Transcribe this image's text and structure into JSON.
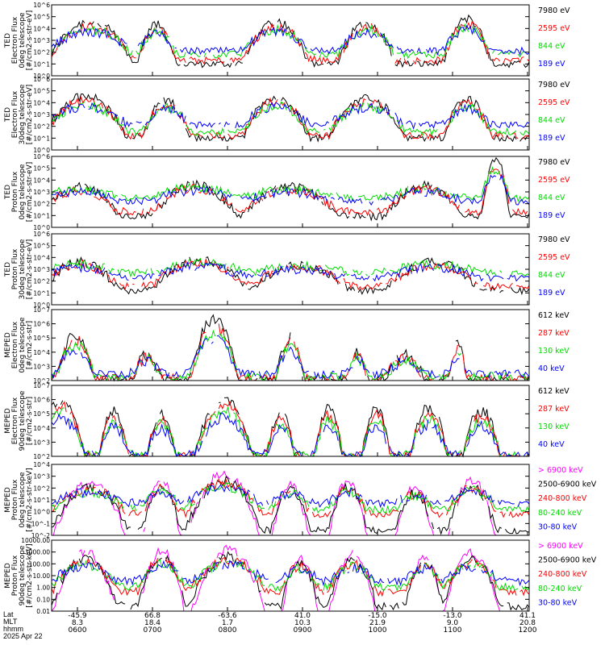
{
  "chart_data": [
    {
      "type": "line",
      "ylabel": [
        "TED",
        "Electron Flux",
        "0deg telescope",
        "[#/cm2-s-str-eV]"
      ],
      "yscale": "log",
      "ylim": [
        1,
        1000000
      ],
      "yticks": [
        "10^0",
        "10^1",
        "10^2",
        "10^3",
        "10^4",
        "10^5",
        "10^6"
      ],
      "series": [
        {
          "name": "7980 eV",
          "color": "#000000",
          "base": 1.0
        },
        {
          "name": "2595 eV",
          "color": "#ff0000",
          "base": 1.3
        },
        {
          "name": "844 eV",
          "color": "#00dd00",
          "base": 1.8
        },
        {
          "name": "189 eV",
          "color": "#0000ff",
          "base": 2.1
        }
      ],
      "bursts": [
        [
          0.08,
          0.09,
          4.6
        ],
        [
          0.22,
          0.04,
          4.3
        ],
        [
          0.47,
          0.07,
          4.6
        ],
        [
          0.66,
          0.06,
          4.5
        ],
        [
          0.87,
          0.05,
          4.8
        ]
      ]
    },
    {
      "type": "line",
      "ylabel": [
        "TED",
        "Electron Flux",
        "30deg telescope",
        "[#/cm2-s-str-eV]"
      ],
      "yscale": "log",
      "ylim": [
        1,
        1000000
      ],
      "yticks": [
        "10^0",
        "10^1",
        "10^2",
        "10^3",
        "10^4",
        "10^5",
        "10^6"
      ],
      "series": [
        {
          "name": "7980 eV",
          "color": "#000000",
          "base": 1.0
        },
        {
          "name": "2595 eV",
          "color": "#ff0000",
          "base": 1.2
        },
        {
          "name": "844 eV",
          "color": "#00dd00",
          "base": 1.5
        },
        {
          "name": "189 eV",
          "color": "#0000ff",
          "base": 2.1
        }
      ],
      "bursts": [
        [
          0.07,
          0.09,
          4.5
        ],
        [
          0.24,
          0.05,
          4.2
        ],
        [
          0.47,
          0.07,
          4.5
        ],
        [
          0.66,
          0.08,
          4.4
        ],
        [
          0.87,
          0.05,
          4.3
        ]
      ]
    },
    {
      "type": "line",
      "ylabel": [
        "TED",
        "Proton Flux",
        "0deg telescope",
        "[#/cm2-s-str-eV]"
      ],
      "yscale": "log",
      "ylim": [
        1,
        1000000
      ],
      "yticks": [
        "10^0",
        "10^1",
        "10^2",
        "10^3",
        "10^4",
        "10^5",
        "10^6"
      ],
      "series": [
        {
          "name": "7980 eV",
          "color": "#000000",
          "base": 0.9
        },
        {
          "name": "2595 eV",
          "color": "#ff0000",
          "base": 1.3
        },
        {
          "name": "844 eV",
          "color": "#00dd00",
          "base": 2.5
        },
        {
          "name": "189 eV",
          "color": "#0000ff",
          "base": 2.2
        }
      ],
      "bursts": [
        [
          0.06,
          0.08,
          3.4
        ],
        [
          0.3,
          0.09,
          3.6
        ],
        [
          0.5,
          0.1,
          3.4
        ],
        [
          0.78,
          0.08,
          3.5
        ],
        [
          0.93,
          0.03,
          5.7
        ]
      ]
    },
    {
      "type": "line",
      "ylabel": [
        "TED",
        "Proton Flux",
        "30deg telescope",
        "[#/cm2-s-str-eV]"
      ],
      "yscale": "log",
      "ylim": [
        1,
        1000000
      ],
      "yticks": [
        "10^0",
        "10^1",
        "10^2",
        "10^3",
        "10^4",
        "10^5",
        "10^6"
      ],
      "series": [
        {
          "name": "7980 eV",
          "color": "#000000",
          "base": 1.2
        },
        {
          "name": "2595 eV",
          "color": "#ff0000",
          "base": 1.6
        },
        {
          "name": "844 eV",
          "color": "#00dd00",
          "base": 2.7
        },
        {
          "name": "189 eV",
          "color": "#0000ff",
          "base": 2.3
        }
      ],
      "bursts": [
        [
          0.06,
          0.08,
          3.6
        ],
        [
          0.31,
          0.1,
          3.8
        ],
        [
          0.52,
          0.1,
          3.4
        ],
        [
          0.8,
          0.1,
          3.6
        ]
      ]
    },
    {
      "type": "line",
      "ylabel": [
        "MEPED",
        "Electron Flux",
        "0deg telescope",
        "[#/cm2-s-str]"
      ],
      "yscale": "log",
      "ylim": [
        100,
        10000000
      ],
      "yticks": [
        "10^2",
        "10^3",
        "10^4",
        "10^5",
        "10^6",
        "10^7"
      ],
      "series": [
        {
          "name": "612 keV",
          "color": "#000000",
          "base": 2.05
        },
        {
          "name": "287 keV",
          "color": "#ff0000",
          "base": 2.15
        },
        {
          "name": "130 keV",
          "color": "#00dd00",
          "base": 2.3
        },
        {
          "name": "40 keV",
          "color": "#0000ff",
          "base": 2.45
        }
      ],
      "bursts": [
        [
          0.05,
          0.04,
          5.2
        ],
        [
          0.2,
          0.03,
          3.8
        ],
        [
          0.34,
          0.05,
          6.3
        ],
        [
          0.5,
          0.03,
          5.0
        ],
        [
          0.64,
          0.02,
          4.0
        ],
        [
          0.74,
          0.04,
          3.8
        ],
        [
          0.85,
          0.02,
          4.5
        ]
      ]
    },
    {
      "type": "line",
      "ylabel": [
        "MEPED",
        "Electron Flux",
        "90deg telescope",
        "[#/cm2-s-str]"
      ],
      "yscale": "log",
      "ylim": [
        100,
        10000000
      ],
      "yticks": [
        "10^2",
        "10^3",
        "10^4",
        "10^5",
        "10^6",
        "10^7"
      ],
      "series": [
        {
          "name": "612 keV",
          "color": "#000000",
          "base": 1.9
        },
        {
          "name": "287 keV",
          "color": "#ff0000",
          "base": 2.0
        },
        {
          "name": "130 keV",
          "color": "#00dd00",
          "base": 2.05
        },
        {
          "name": "40 keV",
          "color": "#0000ff",
          "base": 2.1
        }
      ],
      "bursts": [
        [
          0.02,
          0.05,
          6.0
        ],
        [
          0.13,
          0.03,
          5.2
        ],
        [
          0.23,
          0.03,
          5.0
        ],
        [
          0.36,
          0.06,
          6.2
        ],
        [
          0.48,
          0.03,
          5.0
        ],
        [
          0.58,
          0.03,
          5.3
        ],
        [
          0.68,
          0.03,
          5.3
        ],
        [
          0.79,
          0.04,
          5.4
        ],
        [
          0.9,
          0.04,
          5.2
        ]
      ]
    },
    {
      "type": "line",
      "ylabel": [
        "MEPED",
        "Proton Flux",
        "0deg telescope",
        "[#/cm2-s-str-keV]"
      ],
      "yscale": "log",
      "ylim": [
        0.01,
        10000
      ],
      "yticks": [
        "10^-2",
        "10^-1",
        "10^0",
        "10^1",
        "10^2",
        "10^3",
        "10^4"
      ],
      "series": [
        {
          "name": "> 6900 keV",
          "color": "#ff00ff",
          "base": -2.5
        },
        {
          "name": "2500-6900 keV",
          "color": "#000000",
          "base": -1.6
        },
        {
          "name": "240-800 keV",
          "color": "#ff0000",
          "base": -0.2
        },
        {
          "name": "80-240 keV",
          "color": "#00dd00",
          "base": 0.2
        },
        {
          "name": "30-80 keV",
          "color": "#0000ff",
          "base": 0.7
        }
      ],
      "bursts": [
        [
          0.08,
          0.08,
          2.5
        ],
        [
          0.23,
          0.04,
          2.6
        ],
        [
          0.36,
          0.08,
          3.2
        ],
        [
          0.5,
          0.04,
          2.3
        ],
        [
          0.62,
          0.04,
          2.6
        ],
        [
          0.76,
          0.04,
          2.0
        ],
        [
          0.88,
          0.05,
          2.7
        ]
      ]
    },
    {
      "type": "line",
      "ylabel": [
        "MEPED",
        "Proton Flux",
        "90deg telescope",
        "[#/cm2-s-str-keV]"
      ],
      "yscale": "log",
      "ylim": [
        0.01,
        10000
      ],
      "yticks": [
        "0.01",
        "0.10",
        "1.00",
        "10.00",
        "100.00",
        "1000.00",
        "10000.00"
      ],
      "series": [
        {
          "name": "> 6900 keV",
          "color": "#ff00ff",
          "base": -2.5
        },
        {
          "name": "2500-6900 keV",
          "color": "#000000",
          "base": -1.6
        },
        {
          "name": "240-800 keV",
          "color": "#ff0000",
          "base": -0.4
        },
        {
          "name": "80-240 keV",
          "color": "#00dd00",
          "base": 0.0
        },
        {
          "name": "30-80 keV",
          "color": "#0000ff",
          "base": 0.5
        }
      ],
      "bursts": [
        [
          0.07,
          0.07,
          3.0
        ],
        [
          0.23,
          0.05,
          3.1
        ],
        [
          0.37,
          0.08,
          3.2
        ],
        [
          0.52,
          0.04,
          2.5
        ],
        [
          0.63,
          0.05,
          2.8
        ],
        [
          0.78,
          0.04,
          2.6
        ],
        [
          0.88,
          0.06,
          2.9
        ]
      ]
    }
  ],
  "axis_footer": {
    "labels": [
      "Lat",
      "MLT",
      "hhmm",
      "2025 Apr 22"
    ],
    "lat": [
      "-45.9",
      "66.8",
      "-63.6",
      "41.0",
      "-15.0",
      "-13.0",
      "41.1"
    ],
    "mlt": [
      "8.3",
      "18.4",
      "1.7",
      "10.3",
      "21.9",
      "9.0",
      "20.8"
    ],
    "hhmm": [
      "0600",
      "0700",
      "0800",
      "0900",
      "1000",
      "1100",
      "1200"
    ]
  }
}
